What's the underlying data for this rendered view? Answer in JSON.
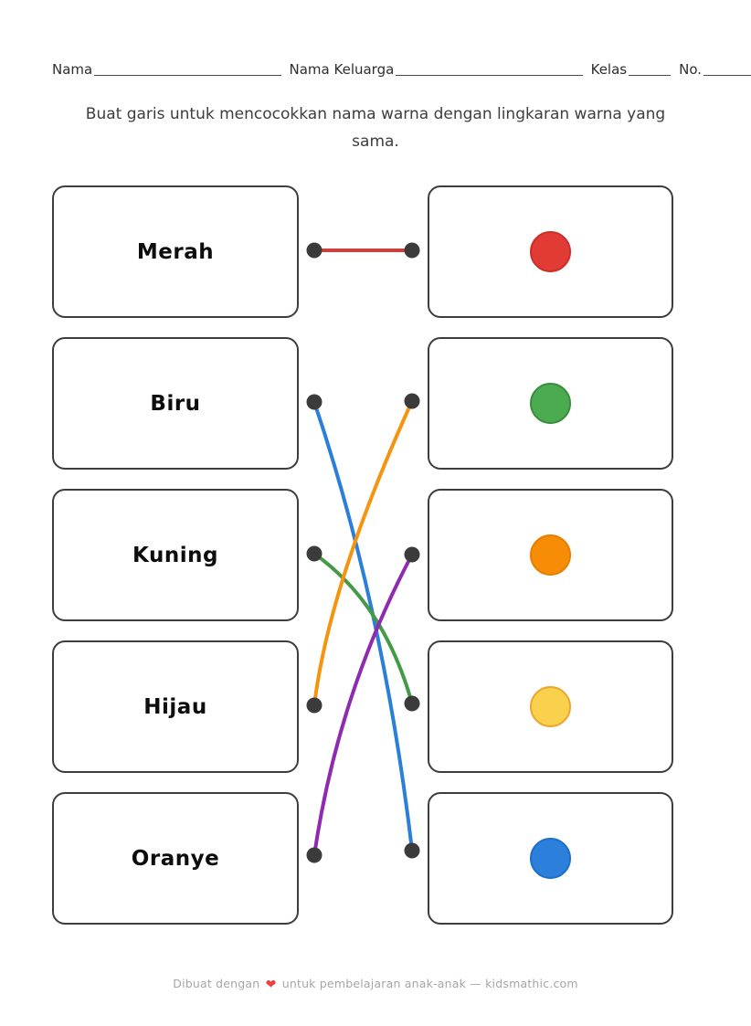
{
  "header": {
    "fields": [
      {
        "label": "Nama"
      },
      {
        "label": "Nama Keluarga"
      },
      {
        "label": "Kelas"
      },
      {
        "label": "No."
      }
    ]
  },
  "instruction": "Buat garis untuk mencocokkan nama warna dengan lingkaran warna yang sama.",
  "left_column": {
    "items": [
      {
        "label": "Merah"
      },
      {
        "label": "Biru"
      },
      {
        "label": "Kuning"
      },
      {
        "label": "Hijau"
      },
      {
        "label": "Oranye"
      }
    ]
  },
  "right_column": {
    "items": [
      {
        "color_name": "red",
        "hex": "#e23a35",
        "border": "#cb2f2a"
      },
      {
        "color_name": "green",
        "hex": "#4cab51",
        "border": "#388e3c"
      },
      {
        "color_name": "orange",
        "hex": "#f78d06",
        "border": "#e67e00"
      },
      {
        "color_name": "yellow",
        "hex": "#fad14c",
        "border": "#eda52f"
      },
      {
        "color_name": "blue",
        "hex": "#2b80dc",
        "border": "#1f6ec9"
      }
    ]
  },
  "connections": [
    {
      "from": 0,
      "to": 0,
      "from_label": "Merah",
      "to_circle": "red",
      "line_color": "#cc403b"
    },
    {
      "from": 1,
      "to": 4,
      "from_label": "Biru",
      "to_circle": "blue",
      "line_color": "#2b7fd8"
    },
    {
      "from": 2,
      "to": 3,
      "from_label": "Kuning",
      "to_circle": "yellow",
      "line_color": "#459a48"
    },
    {
      "from": 3,
      "to": 1,
      "from_label": "Hijau",
      "to_circle": "green",
      "line_color": "#f6940f"
    },
    {
      "from": 4,
      "to": 2,
      "from_label": "Oranye",
      "to_circle": "orange",
      "line_color": "#8f2bb0"
    }
  ],
  "dot_color": "#3b3b3b",
  "footer": {
    "text_before_heart": "Dibuat dengan",
    "heart_icon": "❤",
    "text_after_heart": "untuk pembelajaran anak-anak — kidsmathic.com"
  }
}
